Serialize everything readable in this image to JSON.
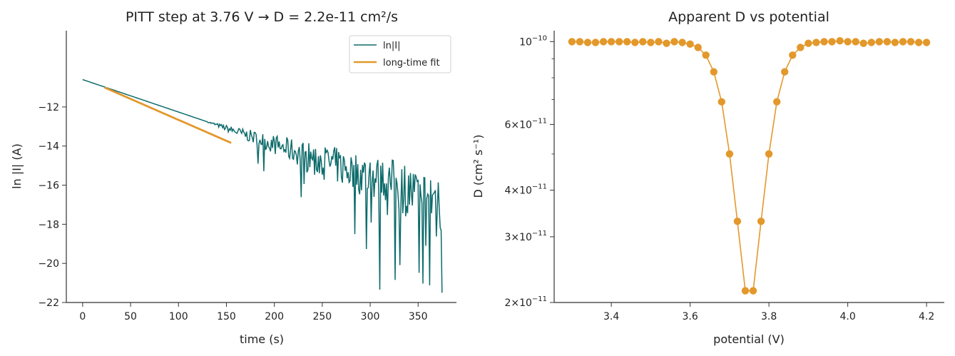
{
  "chart_data": [
    {
      "type": "line",
      "title": "PITT step at 3.76 V  →  D = 2.2e-11 cm²/s",
      "xlabel": "time (s)",
      "ylabel": "ln |I|  (A)",
      "xlim": [
        -17,
        390
      ],
      "ylim": [
        -22,
        -8.1
      ],
      "x_ticks": [
        0,
        50,
        100,
        150,
        200,
        250,
        300,
        350
      ],
      "y_ticks": [
        -22,
        -20,
        -18,
        -16,
        -14,
        -12
      ],
      "x_tick_labels": [
        "0",
        "50",
        "100",
        "150",
        "200",
        "250",
        "300",
        "350"
      ],
      "y_tick_labels": [
        "−22",
        "−20",
        "−18",
        "−16",
        "−14",
        "−12"
      ],
      "legend_position": "top-right",
      "grid": false,
      "series": [
        {
          "name": "ln|I|",
          "color": "#0e6b6b",
          "style": "noisy decay",
          "x_range": [
            0,
            375
          ],
          "trend": {
            "start": [
              0,
              -10.6
            ],
            "slope": -0.0166
          },
          "noise_onset_s": 130,
          "noise_envelope": {
            "min_y": -21.5,
            "max_y": -16.2
          }
        },
        {
          "name": "long-time fit",
          "color": "#e3982b",
          "x": [
            23,
            155
          ],
          "y": [
            -11.01,
            -13.84
          ]
        }
      ]
    },
    {
      "type": "line",
      "title": "Apparent D vs potential",
      "xlabel": "potential (V)",
      "ylabel": "D (cm² s⁻¹)",
      "yscale": "log",
      "xlim": [
        3.255,
        4.245
      ],
      "ylim": [
        2e-11,
        1.07e-10
      ],
      "x_ticks": [
        3.4,
        3.6,
        3.8,
        4.0,
        4.2
      ],
      "x_tick_labels": [
        "3.4",
        "3.6",
        "3.8",
        "4.0",
        "4.2"
      ],
      "y_major_ticks": [
        {
          "value": 2e-11,
          "mant": "2×10",
          "exp": "−11"
        },
        {
          "value": 3e-11,
          "mant": "3×10",
          "exp": "−11"
        },
        {
          "value": 4e-11,
          "mant": "4×10",
          "exp": "−11"
        },
        {
          "value": 6e-11,
          "mant": "6×10",
          "exp": "−11"
        },
        {
          "value": 1e-10,
          "mant": "10",
          "exp": "−10"
        }
      ],
      "y_minor_ticks": [
        5e-11,
        7e-11,
        8e-11,
        9e-11
      ],
      "grid": false,
      "series": [
        {
          "color": "#e3982b",
          "marker": "circle",
          "x": [
            3.3,
            3.32,
            3.34,
            3.36,
            3.38,
            3.4,
            3.42,
            3.44,
            3.46,
            3.48,
            3.5,
            3.52,
            3.54,
            3.56,
            3.58,
            3.6,
            3.62,
            3.64,
            3.66,
            3.68,
            3.7,
            3.72,
            3.74,
            3.76,
            3.78,
            3.8,
            3.82,
            3.84,
            3.86,
            3.88,
            3.9,
            3.92,
            3.94,
            3.96,
            3.98,
            4.0,
            4.02,
            4.04,
            4.06,
            4.08,
            4.1,
            4.12,
            4.14,
            4.16,
            4.18,
            4.2
          ],
          "y": [
            1e-10,
            1e-10,
            9.95e-11,
            9.95e-11,
            1e-10,
            1e-10,
            1e-10,
            1e-10,
            9.95e-11,
            1e-10,
            9.95e-11,
            1e-10,
            9.9e-11,
            1e-10,
            9.95e-11,
            9.85e-11,
            9.65e-11,
            9.2e-11,
            8.3e-11,
            6.9e-11,
            5e-11,
            3.3e-11,
            2.15e-11,
            2.15e-11,
            3.3e-11,
            5e-11,
            6.9e-11,
            8.3e-11,
            9.2e-11,
            9.65e-11,
            9.9e-11,
            9.95e-11,
            1e-10,
            1e-10,
            1.005e-10,
            1e-10,
            1e-10,
            9.9e-11,
            9.95e-11,
            1e-10,
            1e-10,
            9.95e-11,
            1e-10,
            1e-10,
            9.95e-11,
            9.95e-11
          ]
        }
      ]
    }
  ]
}
